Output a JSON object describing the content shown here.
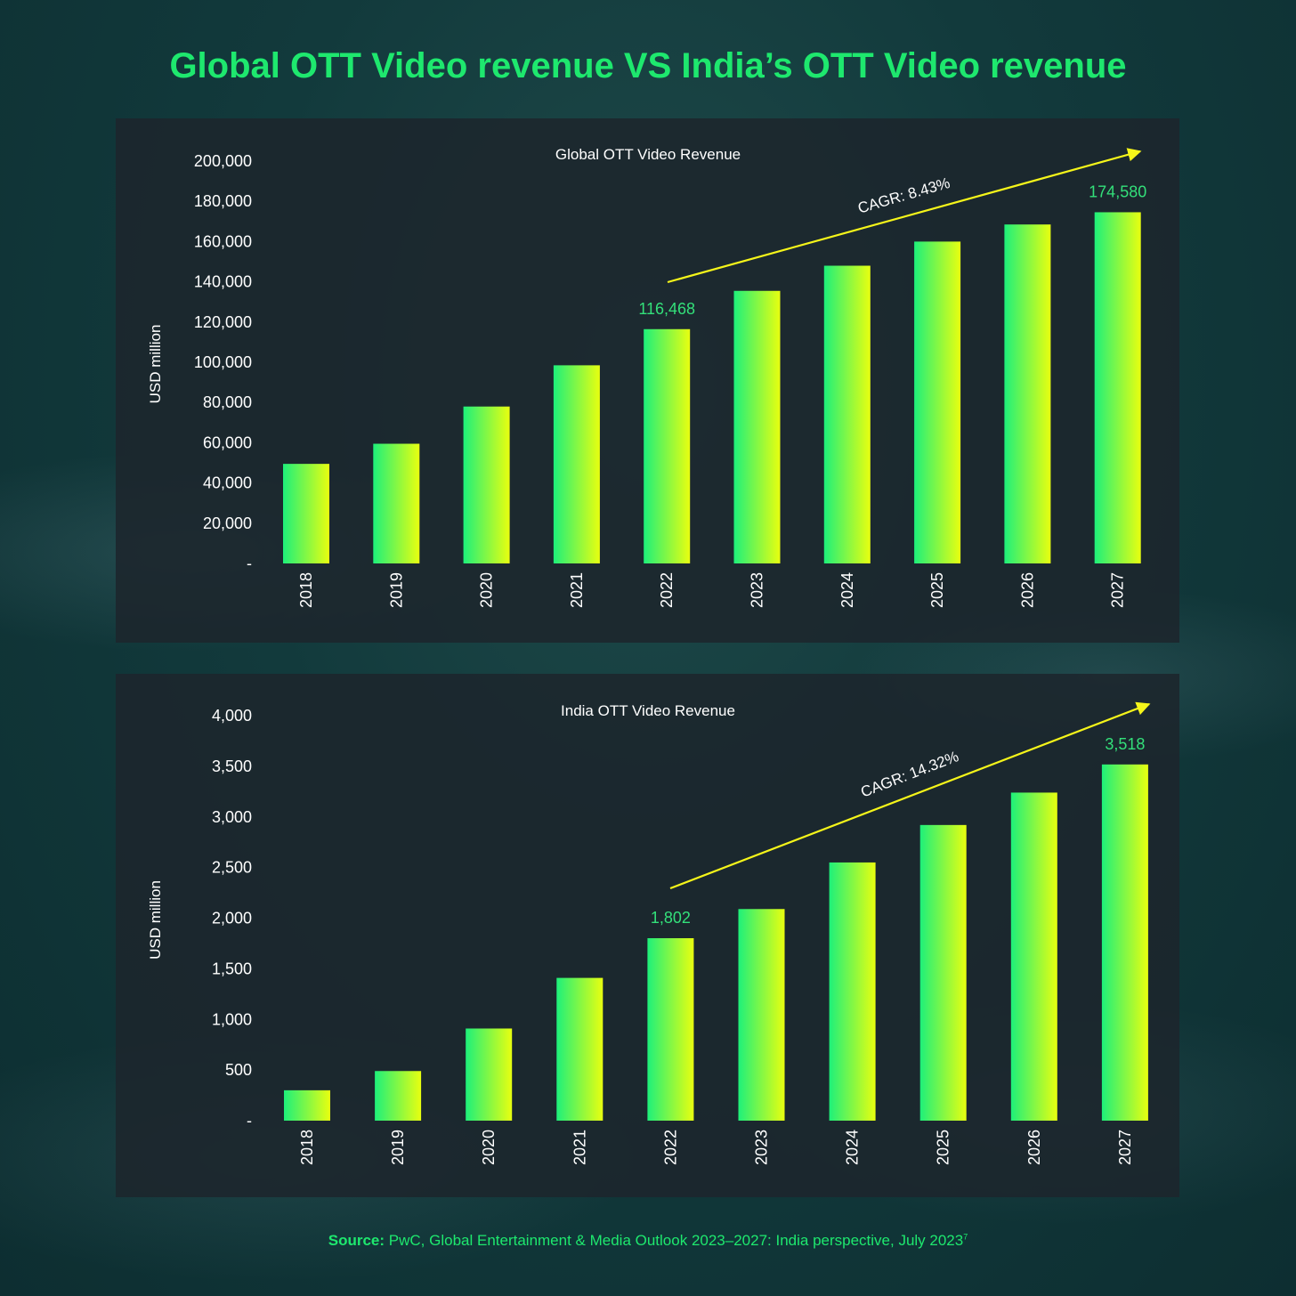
{
  "title": "Global OTT Video revenue VS India’s OTT Video revenue",
  "source": {
    "label": "Source:",
    "text": "PwC, Global Entertainment & Media Outlook 2023–2027: India perspective, July 2023",
    "footnote": "7"
  },
  "colors": {
    "title": "#1ee86e",
    "bar_start": "#1ef07a",
    "bar_end": "#e8ff10",
    "arrow": "#f5f51a",
    "label_highlight": "#33e07a",
    "text": "#ffffff"
  },
  "chart_data": [
    {
      "type": "bar",
      "title": "Global OTT Video Revenue",
      "ylabel": "USD million",
      "xlabel": "",
      "categories": [
        "2018",
        "2019",
        "2020",
        "2021",
        "2022",
        "2023",
        "2024",
        "2025",
        "2026",
        "2027"
      ],
      "values": [
        49500,
        59500,
        78000,
        98500,
        116468,
        135500,
        148000,
        160000,
        168500,
        174580
      ],
      "ylim": [
        0,
        200000
      ],
      "yticks": [
        "-",
        "20,000",
        "40,000",
        "60,000",
        "80,000",
        "100,000",
        "120,000",
        "140,000",
        "160,000",
        "180,000",
        "200,000"
      ],
      "data_labels": [
        {
          "category": "2022",
          "text": "116,468"
        },
        {
          "category": "2027",
          "text": "174,580"
        }
      ],
      "annotation": {
        "text": "CAGR: 8.43%",
        "from": "2022",
        "to": "2027"
      },
      "grid": false,
      "legend": "none"
    },
    {
      "type": "bar",
      "title": "India OTT Video Revenue",
      "ylabel": "USD million",
      "xlabel": "",
      "categories": [
        "2018",
        "2019",
        "2020",
        "2021",
        "2022",
        "2023",
        "2024",
        "2025",
        "2026",
        "2027"
      ],
      "values": [
        300,
        490,
        910,
        1410,
        1802,
        2090,
        2550,
        2920,
        3240,
        3518
      ],
      "ylim": [
        0,
        4000
      ],
      "yticks": [
        "-",
        "500",
        "1,000",
        "1,500",
        "2,000",
        "2,500",
        "3,000",
        "3,500",
        "4,000"
      ],
      "data_labels": [
        {
          "category": "2022",
          "text": "1,802"
        },
        {
          "category": "2027",
          "text": "3,518"
        }
      ],
      "annotation": {
        "text": "CAGR: 14.32%",
        "from": "2022",
        "to": "2027"
      },
      "grid": false,
      "legend": "none"
    }
  ]
}
